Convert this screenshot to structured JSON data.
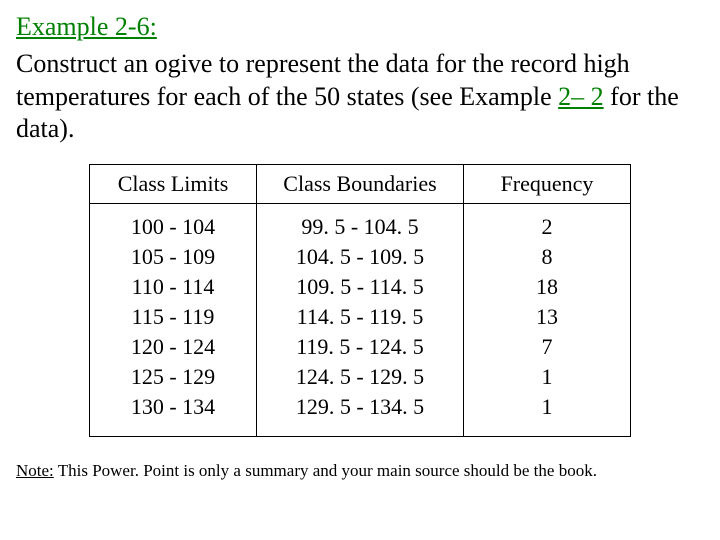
{
  "title": {
    "text": "Example 2-6:",
    "color": "#008000"
  },
  "body": {
    "pre": "Construct an ogive to represent the data for the record high temperatures for each of the 50 states (see Example ",
    "link_text": "2– 2",
    "link_color": "#008000",
    "post": " for the data)."
  },
  "table": {
    "columns": [
      "Class Limits",
      "Class Boundaries",
      "Frequency"
    ],
    "rows": [
      [
        "100 - 104",
        "99. 5 - 104. 5",
        "2"
      ],
      [
        "105 - 109",
        "104. 5 - 109. 5",
        "8"
      ],
      [
        "110 - 114",
        "109. 5 - 114. 5",
        "18"
      ],
      [
        "115 - 119",
        "114. 5 - 119. 5",
        "13"
      ],
      [
        "120 - 124",
        "119. 5 - 124. 5",
        "7"
      ],
      [
        "125 - 129",
        "124. 5 - 129. 5",
        "1"
      ],
      [
        "130 - 134",
        "129. 5 - 134. 5",
        "1"
      ]
    ]
  },
  "note": {
    "label": "Note:",
    "text": " This Power. Point is only a summary and your main source should be the book."
  }
}
